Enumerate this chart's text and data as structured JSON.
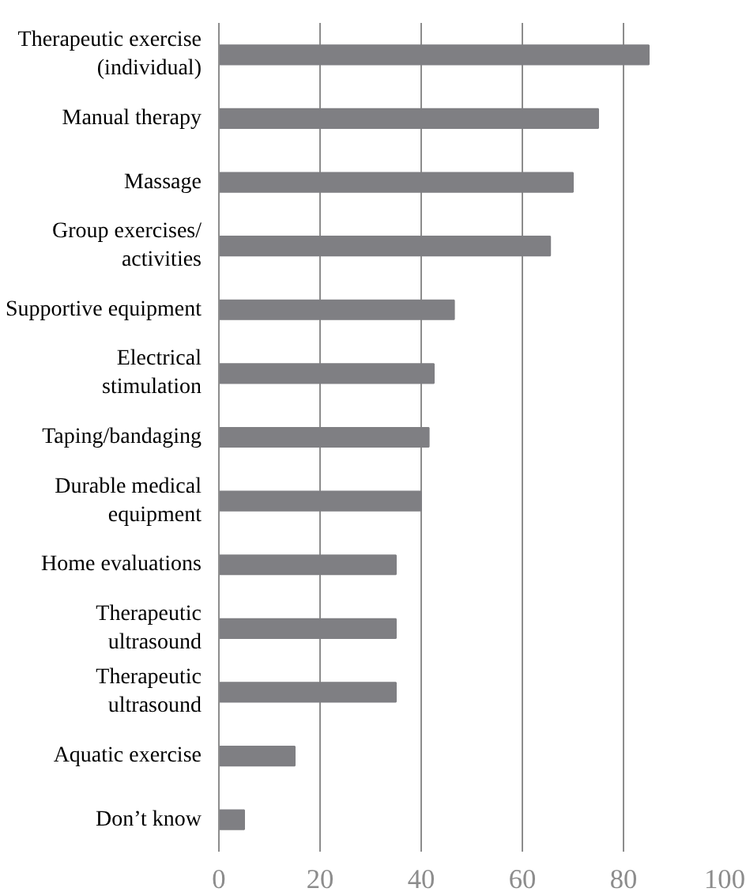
{
  "chart_data": {
    "type": "bar",
    "orientation": "horizontal",
    "categories": [
      "Therapeutic exercise (individual)",
      "Manual therapy",
      "Massage",
      "Group exercises/activities",
      "Supportive equipment",
      "Electrical stimulation",
      "Taping/bandaging",
      "Durable medical equipment",
      "Home evaluations",
      "Therapeutic ultrasound",
      "Therapeutic ultrasound",
      "Aquatic exercise",
      "Don’t know"
    ],
    "values": [
      85,
      75,
      70,
      65.5,
      46.5,
      42.5,
      41.5,
      40,
      35,
      35,
      35,
      15,
      5
    ],
    "color": "#7f7f83",
    "xlim": [
      0,
      100
    ],
    "xticks": [
      0,
      20,
      40,
      60,
      80,
      100
    ],
    "grid": "x"
  }
}
